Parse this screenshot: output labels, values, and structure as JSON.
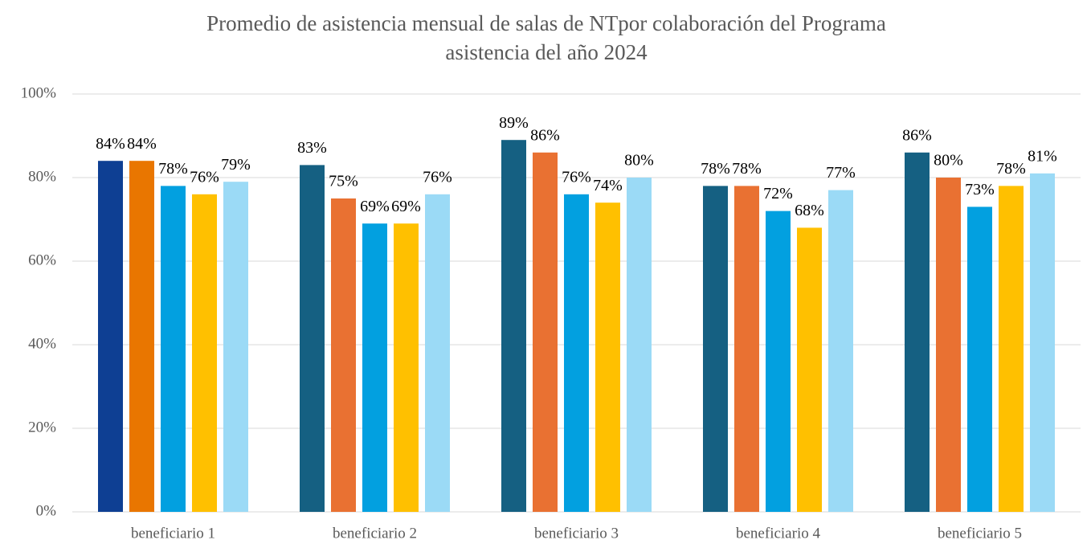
{
  "chart_data": {
    "type": "bar",
    "title": [
      "Promedio de asistencia mensual de salas de NTpor colaboración  del Programa",
      "asistencia del año 2024"
    ],
    "categories": [
      "beneficiario 1",
      "beneficiario 2",
      "beneficiario 3",
      "beneficiario 4",
      "beneficiario 5"
    ],
    "series": [
      {
        "colors": [
          "#0e3f93",
          "#156082",
          "#156082",
          "#156082",
          "#156082"
        ],
        "values": [
          84,
          83,
          89,
          78,
          86
        ],
        "value_labels": [
          "84%",
          "83%",
          "89%",
          "78%",
          "86%"
        ]
      },
      {
        "colors": [
          "#e97600",
          "#e97132",
          "#e97132",
          "#e97132",
          "#e97132"
        ],
        "values": [
          84,
          75,
          86,
          78,
          80
        ],
        "value_labels": [
          "84%",
          "75%",
          "86%",
          "78%",
          "80%"
        ]
      },
      {
        "colors": [
          "#02a0e0",
          "#02a0e0",
          "#02a0e0",
          "#02a0e0",
          "#02a0e0"
        ],
        "values": [
          78,
          69,
          76,
          72,
          73
        ],
        "value_labels": [
          "78%",
          "69%",
          "76%",
          "72%",
          "73%"
        ]
      },
      {
        "colors": [
          "#ffc000",
          "#ffc000",
          "#ffc000",
          "#ffc000",
          "#ffc000"
        ],
        "values": [
          76,
          69,
          74,
          68,
          78
        ],
        "value_labels": [
          "76%",
          "69%",
          "74%",
          "68%",
          "78%"
        ]
      },
      {
        "colors": [
          "#9bdaf6",
          "#9bdaf6",
          "#9bdaf6",
          "#9bdaf6",
          "#9bdaf6"
        ],
        "values": [
          79,
          76,
          80,
          77,
          81
        ],
        "value_labels": [
          "79%",
          "76%",
          "80%",
          "77%",
          "81%"
        ]
      }
    ],
    "ylim": [
      0,
      100
    ],
    "yticks": [
      {
        "value": 0,
        "label": "0%"
      },
      {
        "value": 20,
        "label": "20%"
      },
      {
        "value": 40,
        "label": "40%"
      },
      {
        "value": 60,
        "label": "60%"
      },
      {
        "value": 80,
        "label": "80%"
      },
      {
        "value": 100,
        "label": "100%"
      }
    ],
    "grid": true
  }
}
